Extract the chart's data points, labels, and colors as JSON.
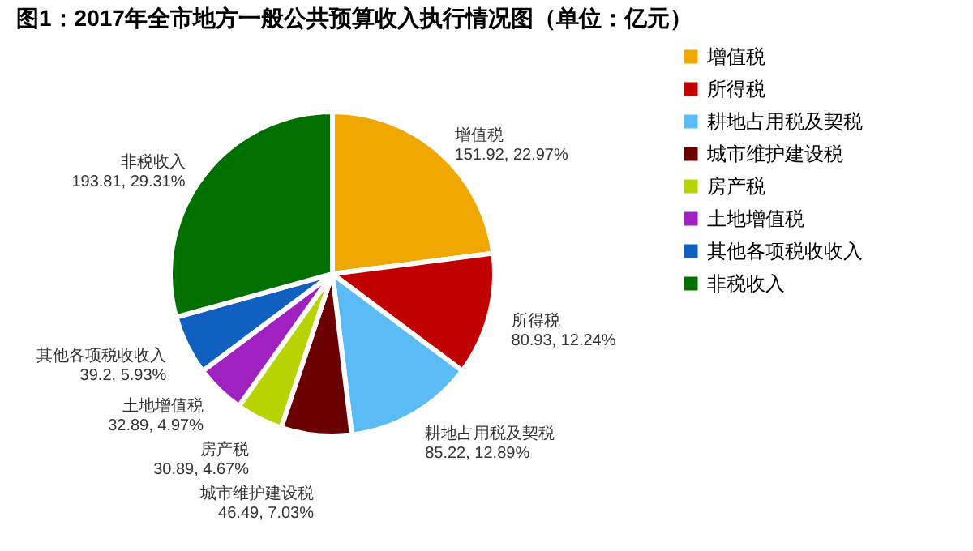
{
  "chart_data": {
    "type": "pie",
    "title": "图1：2017年全市地方一般公共预算收入执行情况图（单位：亿元）",
    "categories": [
      "增值税",
      "所得税",
      "耕地占用税及契税",
      "城市维护建设税",
      "房产税",
      "土地增值税",
      "其他各项税收收入",
      "非税收入"
    ],
    "values": [
      151.92,
      80.93,
      85.22,
      46.49,
      30.89,
      32.89,
      39.2,
      193.81
    ],
    "value_labels": [
      "151.92, 22.97%",
      "80.93, 12.24%",
      "85.22, 12.89%",
      "46.49, 7.03%",
      "30.89, 4.67%",
      "32.89, 4.97%",
      "39.2, 5.93%",
      "193.81, 29.31%"
    ],
    "colors": [
      "#f0a800",
      "#c00000",
      "#5bbcf5",
      "#6b0000",
      "#b8d400",
      "#a020c0",
      "#1060c0",
      "#007000"
    ],
    "legend": "right"
  }
}
